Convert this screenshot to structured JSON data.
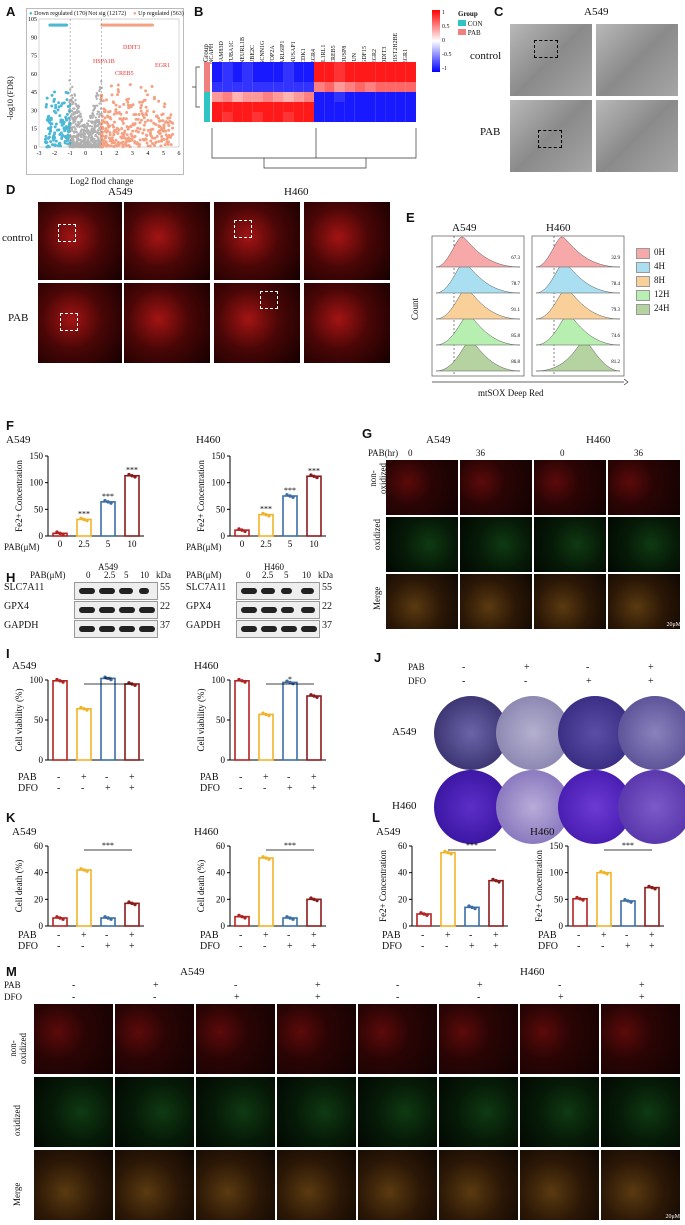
{
  "panels": {
    "A": "A",
    "B": "B",
    "C": "C",
    "D": "D",
    "E": "E",
    "F": "F",
    "G": "G",
    "H": "H",
    "I": "I",
    "J": "J",
    "K": "K",
    "L": "L",
    "M": "M"
  },
  "volcano": {
    "legend_down": "Down regulated (170)",
    "legend_ns": "Not sig (12172)",
    "legend_up": "Up regulated (563)",
    "xlabel": "Log2 flod change",
    "ylabel": "-log10 (FDR)",
    "xticks": [
      "-3",
      "-2",
      "-1",
      "0",
      "1",
      "2",
      "3",
      "4",
      "5",
      "6"
    ],
    "yticks": [
      "0",
      "15",
      "30",
      "45",
      "60",
      "75",
      "90",
      "105"
    ],
    "colors": {
      "down": "#4db8d6",
      "ns": "#b0b0b0",
      "up": "#f4a283"
    }
  },
  "heatmap": {
    "genes": [
      "NCAPH",
      "FAM83D",
      "TUBA1C",
      "NEURL1B",
      "UBE2C",
      "SCNN1G",
      "TOP2A",
      "ARL6IP1",
      "NUSAP1",
      "CDK1",
      "EGR4",
      "IL1RL1",
      "CREB5",
      "DUSP8",
      "JUN",
      "GDF15",
      "EGR2",
      "DDIT3",
      "HIST2H2BE",
      "EGR1"
    ],
    "group_title": "Group",
    "group_label": "Group",
    "legend_con": "CON",
    "legend_pab": "PAB",
    "scale": [
      "1",
      "0.5",
      "0",
      "-0.5",
      "-1"
    ],
    "con_color": "#2ec4c4",
    "pab_color": "#f08080"
  },
  "em": {
    "title": "A549",
    "row_control": "control",
    "row_pab": "PAB",
    "scale": "1 μm"
  },
  "confocal": {
    "col_a549": "A549",
    "col_h460": "H460",
    "row_control": "control",
    "row_pab": "PAB",
    "scale": "5 μm"
  },
  "flow": {
    "col_a549": "A549",
    "col_h460": "H460",
    "xlabel": "mtSOX Deep Red",
    "ylabel": "Count",
    "legend": [
      "0H",
      "4H",
      "8H",
      "12H",
      "24H"
    ],
    "colors": [
      "#f7a9a9",
      "#a9dff0",
      "#f9cf9a",
      "#b6efb0",
      "#b5d3a0"
    ],
    "a549_values": [
      "86.8",
      "85.8",
      "91.1",
      "78.7",
      "67.3"
    ],
    "h460_values": [
      "81.2",
      "74.6",
      "79.3",
      "78.4",
      "32.9"
    ]
  },
  "fe_f": {
    "a549": "A549",
    "h460": "H460",
    "xlabel": "PAB(μM)",
    "ylabel": "Fe2+ Concentration",
    "xticks": [
      "0",
      "2.5",
      "5",
      "10"
    ]
  },
  "ros_g": {
    "header": "PAB(hr)",
    "a549": "A549",
    "h460": "H460",
    "times": [
      "0",
      "36",
      "0",
      "36"
    ],
    "rows": [
      "non-\noxidized",
      "oxidized",
      "Merge"
    ],
    "scale": "20μM"
  },
  "wb_h": {
    "header": "PAB(μM)",
    "doses": [
      "0",
      "2.5",
      "5",
      "10"
    ],
    "a549": "A549",
    "h460": "H460",
    "kda": "kDa",
    "proteins": [
      "SLC7A11",
      "GPX4",
      "GAPDH"
    ],
    "sizes": [
      "55",
      "22",
      "37"
    ]
  },
  "via_i": {
    "a549": "A549",
    "h460": "H460",
    "ylabel": "Cell viability (%)",
    "pab": "PAB",
    "dfo": "DFO",
    "pab_signs": [
      "-",
      "+",
      "-",
      "+"
    ],
    "dfo_signs": [
      "-",
      "-",
      "+",
      "+"
    ],
    "sig_a549": "**",
    "sig_h460": "*"
  },
  "colony_j": {
    "pab": "PAB",
    "dfo": "DFO",
    "pab_signs": [
      "-",
      "+",
      "-",
      "+"
    ],
    "dfo_signs": [
      "-",
      "-",
      "+",
      "+"
    ],
    "a549": "A549",
    "h460": "H460"
  },
  "death_k": {
    "a549": "A549",
    "h460": "H460",
    "ylabel": "Cell death (%)",
    "sig": "***"
  },
  "fe_l": {
    "a549": "A549",
    "h460": "H460",
    "ylabel": "Fe2+ Concentration",
    "sig": "***"
  },
  "ros_m": {
    "a549": "A549",
    "h460": "H460",
    "pab": "PAB",
    "dfo": "DFO",
    "pab_signs": [
      "-",
      "+",
      "-",
      "+",
      "-",
      "+",
      "-",
      "+"
    ],
    "dfo_signs": [
      "-",
      "-",
      "+",
      "+",
      "-",
      "-",
      "+",
      "+"
    ],
    "rows": [
      "non-\noxidized",
      "oxidized",
      "Merge"
    ],
    "scale": "20μM"
  },
  "chart_data": [
    {
      "type": "scatter",
      "id": "A",
      "x_range": [
        -3,
        6
      ],
      "y_range": [
        0,
        105
      ],
      "annotations": [
        "DDIT3",
        "HSPA1B",
        "EGR1",
        "CREB5"
      ],
      "series": [
        {
          "name": "Down regulated (170)"
        },
        {
          "name": "Not sig (12172)"
        },
        {
          "name": "Up regulated (563)"
        }
      ]
    },
    {
      "type": "bar",
      "id": "F-A549",
      "title": "A549",
      "categories": [
        "0",
        "2.5",
        "5",
        "10"
      ],
      "values": [
        5,
        31,
        64,
        113
      ],
      "ylim": [
        0,
        150
      ],
      "yticks": [
        0,
        50,
        100,
        150
      ],
      "sig": [
        "",
        "***",
        "***",
        "***"
      ],
      "colors": [
        "#b22222",
        "#f0b429",
        "#3b6ea5",
        "#8b1a1a"
      ]
    },
    {
      "type": "bar",
      "id": "F-H460",
      "title": "H460",
      "categories": [
        "0",
        "2.5",
        "5",
        "10"
      ],
      "values": [
        11,
        40,
        75,
        112
      ],
      "ylim": [
        0,
        150
      ],
      "yticks": [
        0,
        50,
        100,
        150
      ],
      "sig": [
        "",
        "***",
        "***",
        "***"
      ],
      "colors": [
        "#b22222",
        "#f0b429",
        "#3b6ea5",
        "#8b1a1a"
      ]
    },
    {
      "type": "bar",
      "id": "I-A549",
      "title": "A549",
      "categories": [
        "1",
        "2",
        "3",
        "4"
      ],
      "values": [
        99,
        64,
        102,
        95
      ],
      "ylim": [
        0,
        100
      ],
      "yticks": [
        0,
        50,
        100
      ],
      "colors": [
        "#b22222",
        "#f0b429",
        "#3b6ea5",
        "#8b1a1a"
      ]
    },
    {
      "type": "bar",
      "id": "I-H460",
      "title": "H460",
      "categories": [
        "1",
        "2",
        "3",
        "4"
      ],
      "values": [
        99,
        57,
        97,
        80
      ],
      "ylim": [
        0,
        100
      ],
      "yticks": [
        0,
        50,
        100
      ],
      "colors": [
        "#b22222",
        "#f0b429",
        "#3b6ea5",
        "#8b1a1a"
      ]
    },
    {
      "type": "bar",
      "id": "K-A549",
      "title": "A549",
      "categories": [
        "1",
        "2",
        "3",
        "4"
      ],
      "values": [
        6,
        42,
        6,
        17
      ],
      "ylim": [
        0,
        60
      ],
      "yticks": [
        0,
        20,
        40,
        60
      ],
      "colors": [
        "#b22222",
        "#f0b429",
        "#3b6ea5",
        "#8b1a1a"
      ]
    },
    {
      "type": "bar",
      "id": "K-H460",
      "title": "H460",
      "categories": [
        "1",
        "2",
        "3",
        "4"
      ],
      "values": [
        7,
        51,
        6,
        20
      ],
      "ylim": [
        0,
        60
      ],
      "yticks": [
        0,
        20,
        40,
        60
      ],
      "colors": [
        "#b22222",
        "#f0b429",
        "#3b6ea5",
        "#8b1a1a"
      ]
    },
    {
      "type": "bar",
      "id": "L-A549",
      "title": "A549",
      "categories": [
        "1",
        "2",
        "3",
        "4"
      ],
      "values": [
        9,
        55,
        14,
        34
      ],
      "ylim": [
        0,
        60
      ],
      "yticks": [
        0,
        20,
        40,
        60
      ],
      "colors": [
        "#b22222",
        "#f0b429",
        "#3b6ea5",
        "#8b1a1a"
      ]
    },
    {
      "type": "bar",
      "id": "L-H460",
      "title": "H460",
      "categories": [
        "1",
        "2",
        "3",
        "4"
      ],
      "values": [
        51,
        100,
        47,
        72
      ],
      "ylim": [
        0,
        150
      ],
      "yticks": [
        0,
        50,
        100,
        150
      ],
      "colors": [
        "#b22222",
        "#f0b429",
        "#3b6ea5",
        "#8b1a1a"
      ]
    }
  ]
}
